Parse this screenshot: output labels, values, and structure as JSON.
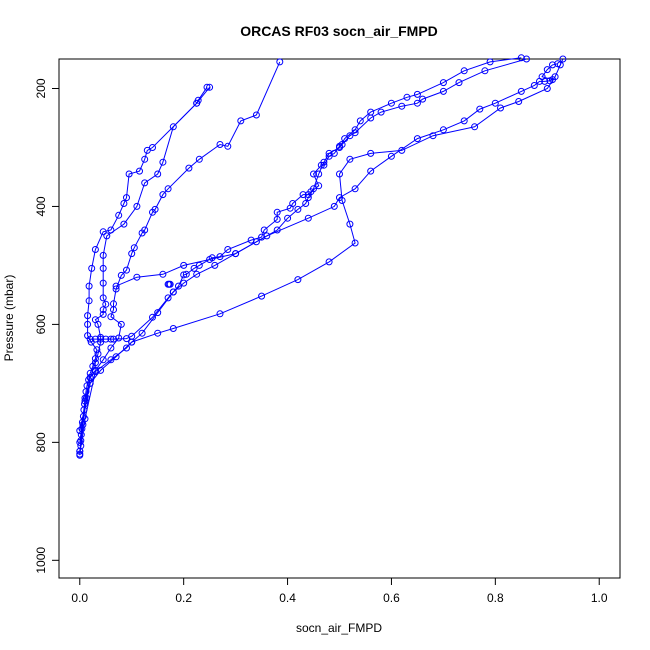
{
  "chart_data": {
    "type": "line",
    "title": "ORCAS RF03 socn_air_FMPD",
    "xlabel": "socn_air_FMPD",
    "ylabel": "Pressure (mbar)",
    "xlim": [
      -0.04,
      1.04
    ],
    "ylim": [
      1030,
      150
    ],
    "y_reversed": true,
    "x_ticks": [
      0.0,
      0.2,
      0.4,
      0.6,
      0.8,
      1.0
    ],
    "x_tick_labels": [
      "0.0",
      "0.2",
      "0.4",
      "0.6",
      "0.8",
      "1.0"
    ],
    "y_ticks": [
      200,
      400,
      600,
      800,
      1000
    ],
    "y_tick_labels": [
      "200",
      "400",
      "600",
      "800",
      "1000"
    ],
    "series_color": "#0000ff",
    "marker": "open-circle",
    "grid": false,
    "series": [
      {
        "points": [
          [
            0.0,
            822
          ],
          [
            0.0,
            815
          ],
          [
            0.002,
            806
          ],
          [
            0.002,
            797
          ],
          [
            0.003,
            787
          ],
          [
            0.004,
            777
          ],
          [
            0.005,
            766
          ],
          [
            0.007,
            756
          ],
          [
            0.008,
            745
          ],
          [
            0.009,
            735
          ],
          [
            0.01,
            725
          ],
          [
            0.012,
            714
          ],
          [
            0.014,
            704
          ],
          [
            0.017,
            694
          ],
          [
            0.02,
            683
          ],
          [
            0.025,
            671
          ],
          [
            0.03,
            658
          ],
          [
            0.033,
            643
          ],
          [
            0.022,
            630
          ],
          [
            0.015,
            619
          ],
          [
            0.015,
            600
          ],
          [
            0.015,
            585
          ],
          [
            0.018,
            560
          ],
          [
            0.018,
            535
          ],
          [
            0.023,
            505
          ],
          [
            0.03,
            473
          ],
          [
            0.045,
            443
          ],
          [
            0.06,
            440
          ],
          [
            0.075,
            415
          ],
          [
            0.085,
            395
          ],
          [
            0.09,
            385
          ],
          [
            0.095,
            345
          ],
          [
            0.115,
            340
          ],
          [
            0.125,
            320
          ],
          [
            0.13,
            305
          ],
          [
            0.14,
            300
          ],
          [
            0.225,
            225
          ],
          [
            0.228,
            220
          ],
          [
            0.245,
            198
          ]
        ]
      },
      {
        "points": [
          [
            0.0,
            815
          ],
          [
            0.006,
            770
          ],
          [
            0.013,
            725
          ],
          [
            0.02,
            690
          ],
          [
            0.03,
            665
          ],
          [
            0.035,
            650
          ],
          [
            0.04,
            630
          ],
          [
            0.04,
            622
          ],
          [
            0.035,
            600
          ],
          [
            0.03,
            592
          ],
          [
            0.045,
            583
          ],
          [
            0.045,
            575
          ],
          [
            0.05,
            566
          ],
          [
            0.045,
            555
          ],
          [
            0.045,
            530
          ],
          [
            0.045,
            505
          ],
          [
            0.045,
            483
          ],
          [
            0.052,
            450
          ],
          [
            0.085,
            430
          ],
          [
            0.11,
            400
          ],
          [
            0.125,
            360
          ],
          [
            0.15,
            345
          ],
          [
            0.16,
            325
          ],
          [
            0.18,
            265
          ],
          [
            0.225,
            225
          ],
          [
            0.25,
            198
          ]
        ]
      },
      {
        "points": [
          [
            0.0,
            800
          ],
          [
            0.01,
            730
          ],
          [
            0.02,
            690
          ],
          [
            0.03,
            678
          ],
          [
            0.045,
            660
          ],
          [
            0.06,
            640
          ],
          [
            0.075,
            623
          ],
          [
            0.08,
            600
          ],
          [
            0.06,
            587
          ],
          [
            0.065,
            575
          ],
          [
            0.065,
            565
          ],
          [
            0.07,
            540
          ],
          [
            0.08,
            517
          ],
          [
            0.09,
            508
          ],
          [
            0.1,
            480
          ],
          [
            0.105,
            470
          ],
          [
            0.12,
            445
          ],
          [
            0.125,
            440
          ],
          [
            0.14,
            410
          ],
          [
            0.145,
            405
          ],
          [
            0.16,
            380
          ],
          [
            0.17,
            370
          ],
          [
            0.21,
            335
          ],
          [
            0.23,
            320
          ],
          [
            0.27,
            295
          ],
          [
            0.285,
            298
          ],
          [
            0.31,
            255
          ],
          [
            0.34,
            245
          ],
          [
            0.385,
            155
          ]
        ]
      },
      {
        "points": [
          [
            0.02,
            625
          ],
          [
            0.03,
            625
          ],
          [
            0.04,
            625
          ],
          [
            0.05,
            625
          ],
          [
            0.06,
            625
          ],
          [
            0.065,
            625
          ],
          [
            0.09,
            624
          ],
          [
            0.1,
            620
          ],
          [
            0.14,
            588
          ],
          [
            0.17,
            555
          ],
          [
            0.18,
            545
          ],
          [
            0.19,
            535
          ],
          [
            0.2,
            516
          ],
          [
            0.205,
            515
          ],
          [
            0.22,
            505
          ],
          [
            0.23,
            500
          ],
          [
            0.255,
            487
          ],
          [
            0.27,
            485
          ],
          [
            0.285,
            473
          ],
          [
            0.33,
            457
          ],
          [
            0.35,
            452
          ],
          [
            0.355,
            440
          ],
          [
            0.38,
            422
          ],
          [
            0.38,
            410
          ],
          [
            0.405,
            403
          ],
          [
            0.41,
            395
          ],
          [
            0.43,
            380
          ],
          [
            0.44,
            380
          ],
          [
            0.445,
            375
          ],
          [
            0.46,
            365
          ],
          [
            0.45,
            345
          ],
          [
            0.465,
            330
          ],
          [
            0.47,
            330
          ],
          [
            0.48,
            315
          ],
          [
            0.49,
            310
          ],
          [
            0.5,
            298
          ],
          [
            0.505,
            295
          ],
          [
            0.52,
            280
          ],
          [
            0.53,
            275
          ],
          [
            0.56,
            250
          ],
          [
            0.58,
            240
          ],
          [
            0.62,
            230
          ],
          [
            0.65,
            225
          ],
          [
            0.66,
            218
          ],
          [
            0.7,
            205
          ],
          [
            0.73,
            190
          ],
          [
            0.78,
            170
          ],
          [
            0.86,
            150
          ]
        ]
      },
      {
        "points": [
          [
            0.0,
            820
          ],
          [
            0.01,
            760
          ],
          [
            0.03,
            680
          ],
          [
            0.06,
            660
          ],
          [
            0.09,
            640
          ],
          [
            0.1,
            630
          ],
          [
            0.12,
            615
          ],
          [
            0.15,
            580
          ],
          [
            0.18,
            545
          ],
          [
            0.2,
            530
          ],
          [
            0.225,
            515
          ],
          [
            0.26,
            500
          ],
          [
            0.3,
            480
          ],
          [
            0.34,
            460
          ],
          [
            0.38,
            440
          ],
          [
            0.4,
            420
          ],
          [
            0.42,
            405
          ],
          [
            0.435,
            395
          ],
          [
            0.44,
            385
          ],
          [
            0.45,
            370
          ],
          [
            0.46,
            345
          ],
          [
            0.47,
            325
          ],
          [
            0.48,
            310
          ],
          [
            0.5,
            300
          ],
          [
            0.51,
            285
          ],
          [
            0.53,
            270
          ],
          [
            0.54,
            255
          ],
          [
            0.56,
            240
          ],
          [
            0.6,
            225
          ],
          [
            0.63,
            215
          ],
          [
            0.65,
            210
          ],
          [
            0.7,
            190
          ],
          [
            0.74,
            170
          ],
          [
            0.79,
            155
          ],
          [
            0.85,
            148
          ]
        ]
      },
      {
        "points": [
          [
            0.0,
            780
          ],
          [
            0.02,
            700
          ],
          [
            0.04,
            678
          ],
          [
            0.07,
            655
          ],
          [
            0.1,
            630
          ],
          [
            0.15,
            615
          ],
          [
            0.18,
            607
          ],
          [
            0.27,
            582
          ],
          [
            0.35,
            552
          ],
          [
            0.42,
            524
          ],
          [
            0.48,
            494
          ],
          [
            0.53,
            462
          ],
          [
            0.52,
            430
          ],
          [
            0.505,
            390
          ],
          [
            0.5,
            345
          ],
          [
            0.52,
            320
          ],
          [
            0.56,
            310
          ],
          [
            0.62,
            305
          ],
          [
            0.68,
            280
          ],
          [
            0.76,
            265
          ],
          [
            0.81,
            233
          ],
          [
            0.845,
            222
          ],
          [
            0.9,
            200
          ],
          [
            0.915,
            180
          ],
          [
            0.925,
            160
          ],
          [
            0.93,
            150
          ]
        ]
      },
      {
        "points": [
          [
            0.07,
            535
          ],
          [
            0.11,
            520
          ],
          [
            0.16,
            515
          ],
          [
            0.2,
            500
          ],
          [
            0.25,
            490
          ],
          [
            0.3,
            480
          ],
          [
            0.36,
            450
          ],
          [
            0.44,
            420
          ],
          [
            0.49,
            400
          ],
          [
            0.5,
            385
          ],
          [
            0.53,
            370
          ],
          [
            0.56,
            340
          ],
          [
            0.6,
            315
          ],
          [
            0.65,
            285
          ],
          [
            0.7,
            270
          ],
          [
            0.74,
            255
          ],
          [
            0.77,
            235
          ],
          [
            0.8,
            225
          ],
          [
            0.85,
            205
          ],
          [
            0.875,
            195
          ],
          [
            0.885,
            188
          ],
          [
            0.895,
            188
          ],
          [
            0.905,
            187
          ],
          [
            0.91,
            185
          ],
          [
            0.89,
            180
          ],
          [
            0.9,
            168
          ],
          [
            0.91,
            160
          ],
          [
            0.92,
            158
          ]
        ]
      }
    ],
    "extra_markers": [
      [
        0.17,
        532
      ],
      [
        0.172,
        532
      ],
      [
        0.174,
        532
      ]
    ]
  }
}
